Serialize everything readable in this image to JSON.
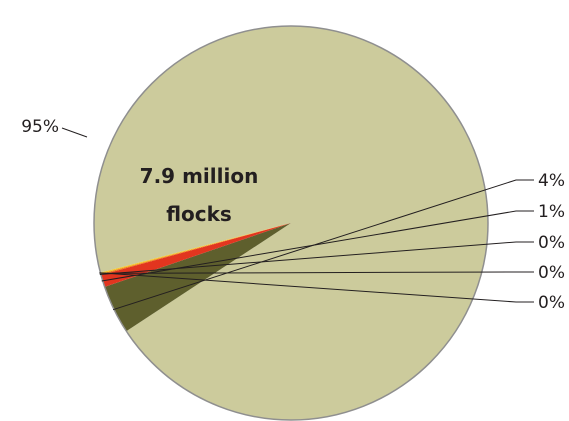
{
  "chart_data": {
    "type": "pie",
    "center_label": [
      "7.9 million",
      "flocks"
    ],
    "slices": [
      {
        "label": "95%",
        "value": 94.8,
        "color": "#cccb9c"
      },
      {
        "label": "4%",
        "value": 4.0,
        "color": "#5e5f2d"
      },
      {
        "label": "1%",
        "value": 1.0,
        "color": "#e2351f"
      },
      {
        "label": "0%",
        "value": 0.1,
        "color": "#f07c1b"
      },
      {
        "label": "0%",
        "value": 0.1,
        "color": "#f5c62a"
      },
      {
        "label": "0%",
        "value": 0.0,
        "color": "#f3e56f"
      }
    ]
  }
}
